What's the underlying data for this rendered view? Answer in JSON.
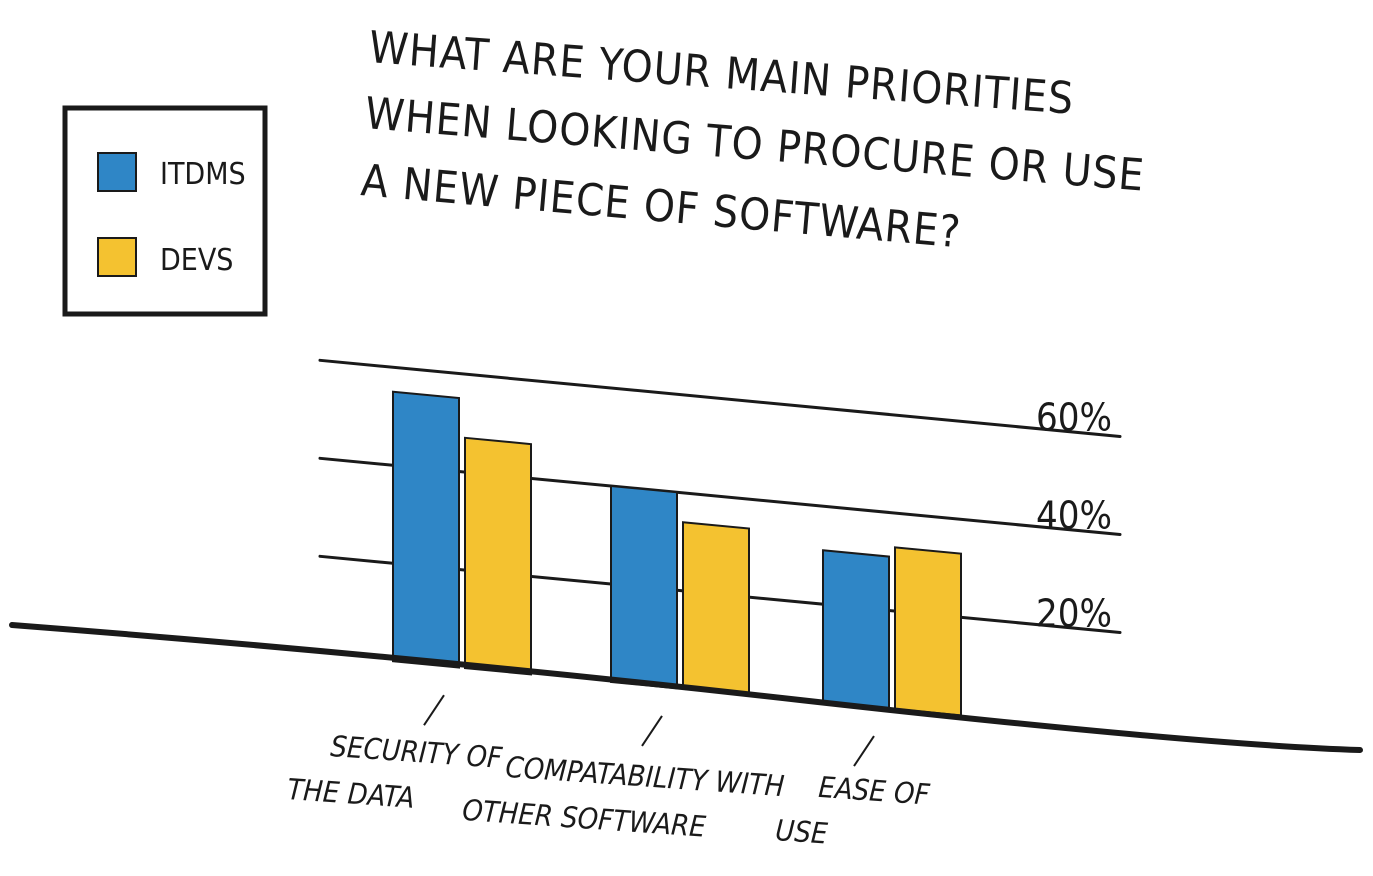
{
  "colors": {
    "itdms": "#2f86c6",
    "devs": "#f4c230",
    "ink": "#1a1a1a",
    "background": "#ffffff"
  },
  "chart_data": {
    "type": "bar",
    "title_lines": [
      "WHAT ARE YOUR MAIN PRIORITIES",
      "WHEN LOOKING TO PROCURE OR USE",
      "A NEW PIECE OF SOFTWARE?"
    ],
    "categories": [
      [
        "SECURITY OF",
        "THE DATA"
      ],
      [
        "COMPATABILITY WITH",
        "OTHER SOFTWARE"
      ],
      [
        "EASE OF",
        "USE"
      ]
    ],
    "series": [
      {
        "name": "ITDMS",
        "values": [
          55,
          40,
          31
        ]
      },
      {
        "name": "DEVS",
        "values": [
          47,
          34,
          33
        ]
      }
    ],
    "yticks": [
      20,
      40,
      60
    ],
    "ytick_labels": [
      "20%",
      "40%",
      "60%"
    ],
    "ylim": [
      0,
      60
    ],
    "grid": true,
    "legend_position": "top-left"
  }
}
